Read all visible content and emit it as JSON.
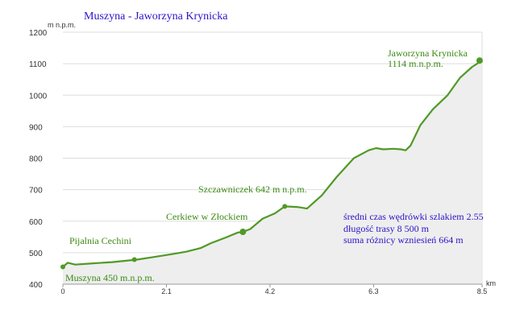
{
  "chart_data": {
    "type": "area",
    "title": "Muszyna - Jaworzyna Krynicka",
    "ylabel": "m n.p.m.",
    "xlabel": "km",
    "xlim": [
      0,
      8.5
    ],
    "ylim": [
      400,
      1200
    ],
    "x_ticks": [
      "0",
      "2.1",
      "4.2",
      "6.3",
      "8.5"
    ],
    "x_tick_values": [
      0,
      2.1,
      4.2,
      6.3,
      8.5
    ],
    "y_ticks": [
      "400",
      "500",
      "600",
      "700",
      "800",
      "900",
      "1000",
      "1100",
      "1200"
    ],
    "y_tick_values": [
      400,
      500,
      600,
      700,
      800,
      900,
      1000,
      1100,
      1200
    ],
    "grid": "horizontal",
    "colors": {
      "line": "#4f9a25",
      "area": "#eeeeee",
      "grid": "#dddddd",
      "title": "#2b14c8",
      "info": "#2b14c8",
      "label": "#3c8a14"
    },
    "x": [
      0,
      0.1,
      0.25,
      0.5,
      1.0,
      1.5,
      1.8,
      2.2,
      2.5,
      2.75,
      2.8,
      3.0,
      3.3,
      3.55,
      3.65,
      3.8,
      4.05,
      4.3,
      4.5,
      4.75,
      4.95,
      5.25,
      5.55,
      5.9,
      6.2,
      6.35,
      6.5,
      6.7,
      6.85,
      6.95,
      7.05,
      7.25,
      7.5,
      7.8,
      8.05,
      8.3,
      8.5
    ],
    "y": [
      455,
      468,
      462,
      465,
      470,
      478,
      485,
      495,
      503,
      513,
      515,
      530,
      548,
      564,
      566,
      575,
      608,
      625,
      647,
      645,
      640,
      682,
      740,
      800,
      825,
      832,
      828,
      830,
      828,
      825,
      840,
      905,
      955,
      1000,
      1055,
      1090,
      1110
    ],
    "points": [
      {
        "x": 0,
        "y": 455,
        "label": "Muszyna 450 m.n.p.m."
      },
      {
        "x": 1.45,
        "y": 478,
        "label": "Pijalnia Cechini"
      },
      {
        "x": 3.65,
        "y": 566,
        "label": "Cerkiew w Złockiem"
      },
      {
        "x": 4.5,
        "y": 647,
        "label": "Szczawniczek 642 m n.p.m."
      },
      {
        "x": 8.45,
        "y": 1110,
        "label": "Jaworzyna Krynicka 1114 m.n.p.m."
      }
    ],
    "annotations": {
      "peak_line1": "Jaworzyna Krynicka",
      "peak_line2": "1114 m.n.p.m.",
      "szczawniczek": "Szczawniczek 642 m n.p.m.",
      "cerkiew": "Cerkiew w Złockiem",
      "pijalnia": "Pijalnia Cechini",
      "muszyna": "Muszyna 450 m.n.p.m."
    },
    "info": [
      "średni czas wędrówki szlakiem 2.55",
      "długość trasy 8 500 m",
      "suma różnicy wzniesień 664 m"
    ]
  }
}
